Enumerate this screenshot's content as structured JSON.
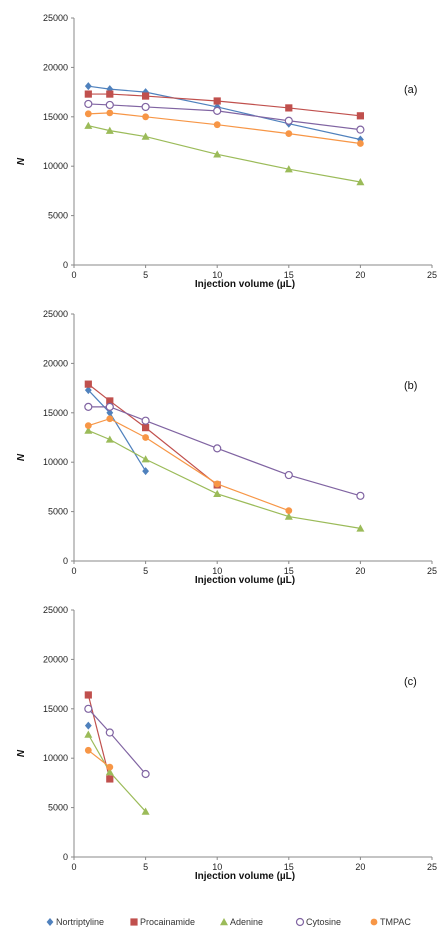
{
  "chart_data": [
    {
      "type": "line",
      "panel_label": "(a)",
      "xlabel": "Injection volume (µL)",
      "ylabel": "N",
      "xlim": [
        0,
        25
      ],
      "ylim": [
        0,
        25000
      ],
      "xticks": [
        "0",
        "5",
        "10",
        "15",
        "20",
        "25"
      ],
      "yticks": [
        "0",
        "5000",
        "10000",
        "15000",
        "20000",
        "25000"
      ],
      "series": [
        {
          "name": "Nortriptyline",
          "x": [
            1,
            2.5,
            5,
            10,
            15,
            20
          ],
          "y": [
            18100,
            17800,
            17500,
            16000,
            14300,
            12700
          ]
        },
        {
          "name": "Procainamide",
          "x": [
            1,
            2.5,
            5,
            10,
            15,
            20
          ],
          "y": [
            17300,
            17300,
            17100,
            16600,
            15900,
            15100
          ]
        },
        {
          "name": "Adenine",
          "x": [
            1,
            2.5,
            5,
            10,
            15,
            20
          ],
          "y": [
            14100,
            13600,
            13000,
            11200,
            9700,
            8400
          ]
        },
        {
          "name": "Cytosine",
          "x": [
            1,
            2.5,
            5,
            10,
            15,
            20
          ],
          "y": [
            16300,
            16200,
            16000,
            15600,
            14600,
            13700
          ]
        },
        {
          "name": "TMPAC",
          "x": [
            1,
            2.5,
            5,
            10,
            15,
            20
          ],
          "y": [
            15300,
            15400,
            15000,
            14200,
            13300,
            12300
          ]
        }
      ]
    },
    {
      "type": "line",
      "panel_label": "(b)",
      "xlabel": "Injection volume (µL)",
      "ylabel": "N",
      "xlim": [
        0,
        25
      ],
      "ylim": [
        0,
        25000
      ],
      "xticks": [
        "0",
        "5",
        "10",
        "15",
        "20",
        "25"
      ],
      "yticks": [
        "0",
        "5000",
        "10000",
        "15000",
        "20000",
        "25000"
      ],
      "series": [
        {
          "name": "Nortriptyline",
          "x": [
            1,
            2.5,
            5
          ],
          "y": [
            17300,
            15000,
            9100
          ]
        },
        {
          "name": "Procainamide",
          "x": [
            1,
            2.5,
            5,
            10
          ],
          "y": [
            17900,
            16200,
            13500,
            7700
          ]
        },
        {
          "name": "Adenine",
          "x": [
            1,
            2.5,
            5,
            10,
            15,
            20
          ],
          "y": [
            13200,
            12300,
            10300,
            6800,
            4500,
            3300
          ]
        },
        {
          "name": "Cytosine",
          "x": [
            1,
            2.5,
            5,
            10,
            15,
            20
          ],
          "y": [
            15600,
            15600,
            14200,
            11400,
            8700,
            6600
          ]
        },
        {
          "name": "TMPAC",
          "x": [
            1,
            2.5,
            5,
            10,
            15
          ],
          "y": [
            13700,
            14400,
            12500,
            7800,
            5100
          ]
        }
      ]
    },
    {
      "type": "line",
      "panel_label": "(c)",
      "xlabel": "Injection volume (µL)",
      "ylabel": "N",
      "xlim": [
        0,
        25
      ],
      "ylim": [
        0,
        25000
      ],
      "xticks": [
        "0",
        "5",
        "10",
        "15",
        "20",
        "25"
      ],
      "yticks": [
        "0",
        "5000",
        "10000",
        "15000",
        "20000",
        "25000"
      ],
      "series": [
        {
          "name": "Nortriptyline",
          "x": [
            1
          ],
          "y": [
            13300
          ]
        },
        {
          "name": "Procainamide",
          "x": [
            1,
            2.5
          ],
          "y": [
            16400,
            7900
          ]
        },
        {
          "name": "Adenine",
          "x": [
            1,
            2.5,
            5
          ],
          "y": [
            12400,
            8600,
            4600
          ]
        },
        {
          "name": "Cytosine",
          "x": [
            1,
            2.5,
            5
          ],
          "y": [
            15000,
            12600,
            8400
          ]
        },
        {
          "name": "TMPAC",
          "x": [
            1,
            2.5
          ],
          "y": [
            10800,
            9100
          ]
        }
      ]
    }
  ],
  "legend": {
    "placement": "bottom",
    "items": [
      {
        "name": "Nortriptyline",
        "color": "#4f81bd",
        "marker": "diamond"
      },
      {
        "name": "Procainamide",
        "color": "#c0504d",
        "marker": "square"
      },
      {
        "name": "Adenine",
        "color": "#9bbb59",
        "marker": "triangle"
      },
      {
        "name": "Cytosine",
        "color": "#8064a2",
        "marker": "open-circle"
      },
      {
        "name": "TMPAC",
        "color": "#f79646",
        "marker": "circle"
      }
    ]
  }
}
